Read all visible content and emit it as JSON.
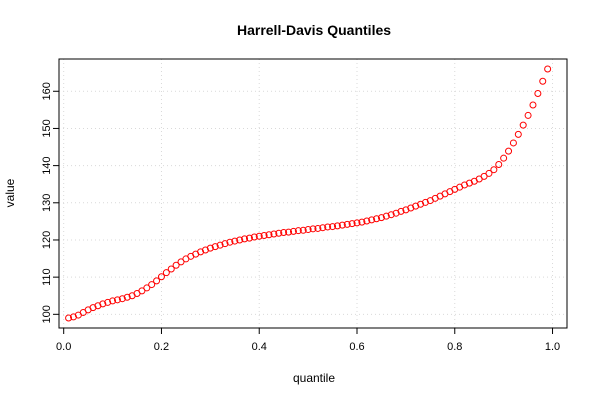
{
  "chart_data": {
    "type": "scatter",
    "title": "Harrell-Davis Quantiles",
    "xlabel": "quantile",
    "ylabel": "value",
    "xlim": [
      -0.0096,
      1.0296
    ],
    "ylim": [
      96.32,
      168.68
    ],
    "xticks": [
      0.0,
      0.2,
      0.4,
      0.6,
      0.8,
      1.0
    ],
    "xtick_labels": [
      "0.0",
      "0.2",
      "0.4",
      "0.6",
      "0.8",
      "1.0"
    ],
    "yticks": [
      100,
      110,
      120,
      130,
      140,
      150,
      160
    ],
    "ytick_labels": [
      "100",
      "110",
      "120",
      "130",
      "140",
      "150",
      "160"
    ],
    "grid": true,
    "marker_color": "#ff0000",
    "series": [
      {
        "x": [
          0.01,
          0.02,
          0.03,
          0.04,
          0.05,
          0.06,
          0.07,
          0.08,
          0.09,
          0.1,
          0.11,
          0.12,
          0.13,
          0.14,
          0.15,
          0.16,
          0.17,
          0.18,
          0.19,
          0.2,
          0.21,
          0.22,
          0.23,
          0.24,
          0.25,
          0.26,
          0.27,
          0.28,
          0.29,
          0.3,
          0.31,
          0.32,
          0.33,
          0.34,
          0.35,
          0.36,
          0.37,
          0.38,
          0.39,
          0.4,
          0.41,
          0.42,
          0.43,
          0.44,
          0.45,
          0.46,
          0.47,
          0.48,
          0.49,
          0.5,
          0.51,
          0.52,
          0.53,
          0.54,
          0.55,
          0.56,
          0.57,
          0.58,
          0.59,
          0.6,
          0.61,
          0.62,
          0.63,
          0.64,
          0.65,
          0.66,
          0.67,
          0.68,
          0.69,
          0.7,
          0.71,
          0.72,
          0.73,
          0.74,
          0.75,
          0.76,
          0.77,
          0.78,
          0.79,
          0.8,
          0.81,
          0.82,
          0.83,
          0.84,
          0.85,
          0.86,
          0.87,
          0.88,
          0.89,
          0.9,
          0.91,
          0.92,
          0.93,
          0.94,
          0.95,
          0.96,
          0.97,
          0.98,
          0.99
        ],
        "y": [
          99.0,
          99.3,
          99.8,
          100.5,
          101.2,
          101.8,
          102.3,
          102.8,
          103.2,
          103.6,
          103.9,
          104.2,
          104.6,
          105.0,
          105.6,
          106.3,
          107.1,
          108.0,
          109.0,
          110.1,
          111.2,
          112.2,
          113.2,
          114.1,
          114.9,
          115.6,
          116.2,
          116.8,
          117.3,
          117.8,
          118.2,
          118.6,
          119.0,
          119.4,
          119.7,
          120.0,
          120.3,
          120.5,
          120.8,
          121.0,
          121.2,
          121.4,
          121.6,
          121.8,
          122.0,
          122.1,
          122.3,
          122.5,
          122.6,
          122.8,
          123.0,
          123.1,
          123.3,
          123.5,
          123.6,
          123.8,
          124.0,
          124.2,
          124.4,
          124.6,
          124.8,
          125.1,
          125.4,
          125.7,
          126.0,
          126.4,
          126.8,
          127.2,
          127.7,
          128.1,
          128.6,
          129.1,
          129.6,
          130.1,
          130.6,
          131.2,
          131.8,
          132.4,
          133.0,
          133.6,
          134.2,
          134.8,
          135.3,
          135.8,
          136.4,
          137.1,
          137.9,
          138.9,
          140.3,
          142.0,
          143.9,
          146.1,
          148.4,
          150.9,
          153.5,
          156.3,
          159.4,
          162.7,
          166.0
        ]
      }
    ]
  }
}
